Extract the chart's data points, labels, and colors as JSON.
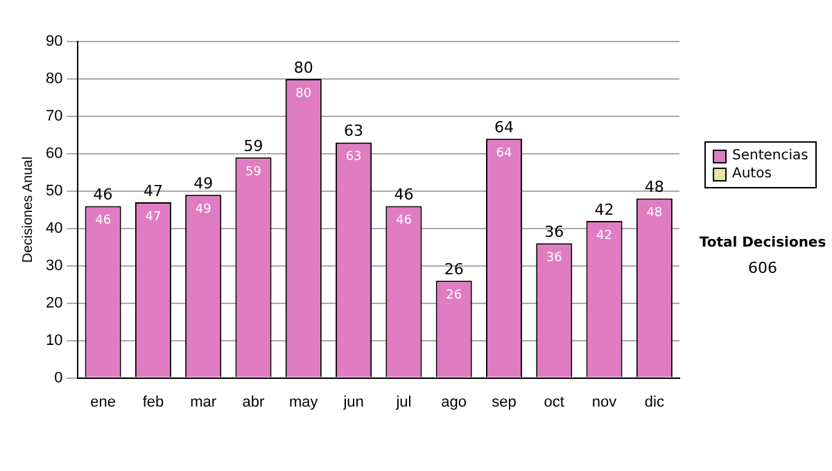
{
  "chart_data": {
    "type": "bar",
    "ylabel": "Decisiones Anual",
    "categories": [
      "ene",
      "feb",
      "mar",
      "abr",
      "may",
      "jun",
      "jul",
      "ago",
      "sep",
      "oct",
      "nov",
      "dic"
    ],
    "stacked": true,
    "series": [
      {
        "name": "Sentencias",
        "color": "#e07cc2",
        "values": [
          46,
          47,
          49,
          59,
          80,
          63,
          46,
          26,
          64,
          36,
          42,
          48
        ],
        "value_labels": [
          "46",
          "47",
          "49",
          "59",
          "80",
          "63",
          "46",
          "26",
          "64",
          "36",
          "42",
          "48"
        ]
      },
      {
        "name": "Autos",
        "color": "#e6e6a0",
        "values": [
          0,
          0,
          0,
          0,
          0,
          0,
          0,
          0,
          0,
          0,
          0,
          0
        ]
      }
    ],
    "totals": [
      "46",
      "47",
      "49",
      "59",
      "80",
      "63",
      "46",
      "26",
      "64",
      "36",
      "42",
      "48"
    ],
    "ylim": [
      0,
      90
    ],
    "yticks": [
      0,
      10,
      20,
      30,
      40,
      50,
      60,
      70,
      80,
      90
    ],
    "grid": "y",
    "legend": "right",
    "annotations": [
      "Total Decisiones",
      "606"
    ]
  }
}
